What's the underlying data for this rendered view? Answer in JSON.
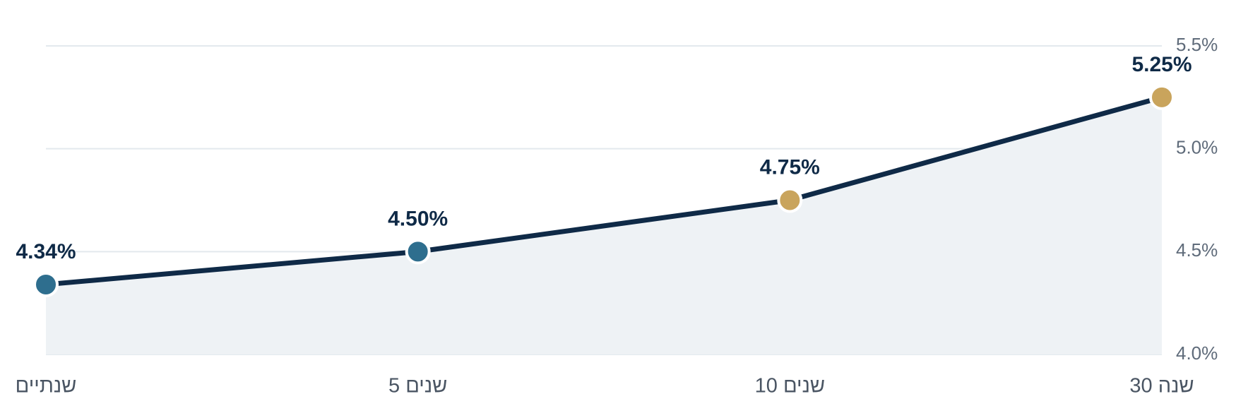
{
  "chart_data": {
    "type": "line",
    "categories": [
      "שנתיים",
      "5 שנים",
      "10 שנים",
      "30 שנה"
    ],
    "values": [
      4.34,
      4.5,
      4.75,
      5.25
    ],
    "value_labels": [
      "4.34%",
      "4.50%",
      "4.75%",
      "5.25%"
    ],
    "color": "#0f2a47",
    "area_color": "#eef2f5",
    "point_colors": [
      "#2e6e8e",
      "#2e6e8e",
      "#c9a45c",
      "#c9a45c"
    ],
    "ylim": [
      4.0,
      5.5
    ],
    "yticks": [
      {
        "value": 4.0,
        "label": "4.0%"
      },
      {
        "value": 4.5,
        "label": "4.5%"
      },
      {
        "value": 5.0,
        "label": "5.0%"
      },
      {
        "value": 5.5,
        "label": "5.5%"
      }
    ],
    "y_axis_side": "right",
    "grid": true
  }
}
